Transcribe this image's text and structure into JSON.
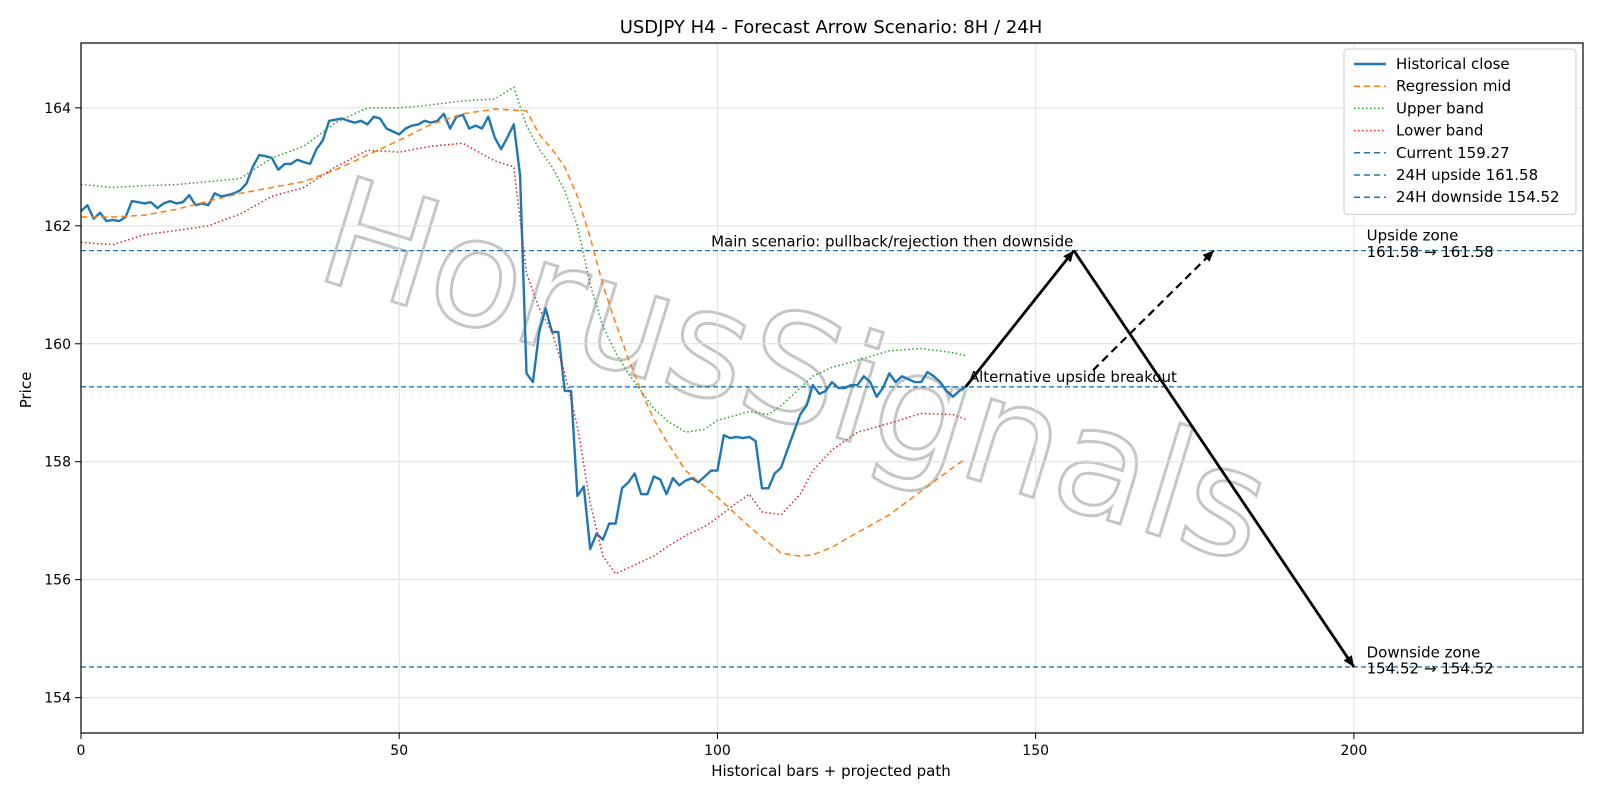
{
  "chart_data": {
    "type": "line",
    "title": "USDJPY H4 - Forecast Arrow Scenario: 8H / 24H",
    "xlabel": "Historical bars + projected path",
    "ylabel": "Price",
    "xlim": [
      0,
      236
    ],
    "ylim": [
      153.4,
      165.1
    ],
    "xticks": [
      0,
      50,
      100,
      150,
      200
    ],
    "yticks": [
      154,
      156,
      158,
      160,
      162,
      164
    ],
    "grid": true,
    "legend_position": "top-right",
    "watermark": "HorusSignals",
    "series": [
      {
        "name": "Historical close",
        "style": "solid",
        "color": "#1f77b4",
        "x": [
          0,
          1,
          2,
          3,
          4,
          5,
          6,
          7,
          8,
          9,
          10,
          11,
          12,
          13,
          14,
          15,
          16,
          17,
          18,
          19,
          20,
          21,
          22,
          23,
          24,
          25,
          26,
          27,
          28,
          29,
          30,
          31,
          32,
          33,
          34,
          35,
          36,
          37,
          38,
          39,
          40,
          41,
          42,
          43,
          44,
          45,
          46,
          47,
          48,
          49,
          50,
          51,
          52,
          53,
          54,
          55,
          56,
          57,
          58,
          59,
          60,
          61,
          62,
          63,
          64,
          65,
          66,
          67,
          68,
          69,
          70,
          71,
          72,
          73,
          74,
          75,
          76,
          77,
          78,
          79,
          80,
          81,
          82,
          83,
          84,
          85,
          86,
          87,
          88,
          89,
          90,
          91,
          92,
          93,
          94,
          95,
          96,
          97,
          98,
          99,
          100,
          101,
          102,
          103,
          104,
          105,
          106,
          107,
          108,
          109,
          110,
          111,
          112,
          113,
          114,
          115,
          116,
          117,
          118,
          119,
          120,
          121,
          122,
          123,
          124,
          125,
          126,
          127,
          128,
          129,
          130,
          131,
          132,
          133,
          134,
          135,
          136,
          137,
          138,
          139
        ],
        "values": [
          162.25,
          162.35,
          162.12,
          162.22,
          162.08,
          162.1,
          162.08,
          162.15,
          162.42,
          162.4,
          162.38,
          162.4,
          162.3,
          162.38,
          162.42,
          162.38,
          162.4,
          162.52,
          162.35,
          162.38,
          162.35,
          162.55,
          162.5,
          162.52,
          162.55,
          162.6,
          162.72,
          163.0,
          163.2,
          163.18,
          163.15,
          162.95,
          163.05,
          163.05,
          163.12,
          163.08,
          163.05,
          163.3,
          163.45,
          163.78,
          163.8,
          163.82,
          163.78,
          163.75,
          163.78,
          163.72,
          163.85,
          163.82,
          163.65,
          163.6,
          163.55,
          163.65,
          163.7,
          163.72,
          163.78,
          163.75,
          163.78,
          163.9,
          163.65,
          163.85,
          163.88,
          163.65,
          163.7,
          163.65,
          163.85,
          163.5,
          163.3,
          163.5,
          163.72,
          162.85,
          159.5,
          159.35,
          160.2,
          160.6,
          160.2,
          160.2,
          159.2,
          159.2,
          157.42,
          157.58,
          156.52,
          156.78,
          156.68,
          156.95,
          156.95,
          157.55,
          157.65,
          157.8,
          157.45,
          157.45,
          157.75,
          157.7,
          157.45,
          157.72,
          157.6,
          157.68,
          157.72,
          157.65,
          157.75,
          157.85,
          157.85,
          158.45,
          158.4,
          158.42,
          158.4,
          158.42,
          158.35,
          157.55,
          157.55,
          157.8,
          157.9,
          158.2,
          158.5,
          158.8,
          158.95,
          159.3,
          159.15,
          159.2,
          159.35,
          159.25,
          159.25,
          159.3,
          159.3,
          159.45,
          159.35,
          159.1,
          159.25,
          159.5,
          159.35,
          159.45,
          159.4,
          159.35,
          159.35,
          159.52,
          159.45,
          159.35,
          159.2,
          159.1,
          159.2,
          159.27
        ]
      },
      {
        "name": "Regression mid",
        "style": "dashed",
        "color": "#ff7f0e",
        "x": [
          0,
          5,
          10,
          15,
          20,
          25,
          30,
          35,
          40,
          45,
          50,
          55,
          60,
          65,
          70,
          72,
          74,
          76,
          78,
          80,
          82,
          84,
          86,
          88,
          90,
          92,
          95,
          100,
          105,
          110,
          113,
          115,
          118,
          122,
          127,
          132,
          137,
          139
        ],
        "values": [
          162.15,
          162.15,
          162.18,
          162.28,
          162.42,
          162.55,
          162.65,
          162.75,
          162.95,
          163.2,
          163.45,
          163.72,
          163.9,
          163.98,
          163.95,
          163.55,
          163.3,
          163.0,
          162.5,
          161.8,
          161.0,
          160.35,
          159.75,
          159.2,
          158.72,
          158.35,
          157.85,
          157.4,
          156.9,
          156.45,
          156.4,
          156.42,
          156.55,
          156.8,
          157.1,
          157.5,
          157.9,
          158.05
        ]
      },
      {
        "name": "Upper band",
        "style": "dotted",
        "color": "#2ca02c",
        "x": [
          0,
          5,
          10,
          15,
          20,
          25,
          30,
          35,
          40,
          45,
          50,
          55,
          60,
          65,
          68,
          70,
          72,
          74,
          76,
          78,
          80,
          82,
          84,
          86,
          88,
          90,
          92,
          95,
          98,
          100,
          105,
          108,
          110,
          113,
          115,
          118,
          122,
          127,
          132,
          137,
          139
        ],
        "values": [
          162.7,
          162.65,
          162.68,
          162.7,
          162.75,
          162.8,
          163.15,
          163.35,
          163.75,
          164.0,
          164.0,
          164.05,
          164.12,
          164.15,
          164.35,
          163.7,
          163.3,
          163.0,
          162.6,
          162.0,
          161.0,
          160.3,
          159.85,
          159.5,
          159.2,
          158.9,
          158.7,
          158.5,
          158.55,
          158.7,
          158.85,
          158.8,
          158.95,
          159.25,
          159.45,
          159.6,
          159.72,
          159.88,
          159.92,
          159.85,
          159.8
        ]
      },
      {
        "name": "Lower band",
        "style": "dotted",
        "color": "#d62728",
        "x": [
          0,
          5,
          10,
          15,
          20,
          25,
          30,
          35,
          40,
          45,
          50,
          55,
          60,
          65,
          68,
          70,
          72,
          74,
          76,
          78,
          80,
          82,
          84,
          86,
          88,
          90,
          92,
          95,
          98,
          100,
          103,
          105,
          107,
          110,
          113,
          115,
          118,
          122,
          127,
          132,
          137,
          139
        ],
        "values": [
          161.72,
          161.68,
          161.85,
          161.92,
          162.0,
          162.2,
          162.5,
          162.65,
          163.0,
          163.28,
          163.25,
          163.35,
          163.4,
          163.1,
          163.0,
          161.2,
          160.6,
          160.2,
          159.5,
          158.6,
          157.3,
          156.4,
          156.1,
          156.2,
          156.3,
          156.4,
          156.55,
          156.75,
          156.9,
          157.05,
          157.3,
          157.45,
          157.15,
          157.1,
          157.45,
          157.85,
          158.2,
          158.5,
          158.65,
          158.82,
          158.8,
          158.72
        ]
      }
    ],
    "reference_lines": [
      {
        "name": "Current 159.27",
        "value": 159.27,
        "style": "dashed",
        "color": "#1f77b4"
      },
      {
        "name": "24H upside 161.58",
        "value": 161.58,
        "style": "dashed",
        "color": "#1f77b4"
      },
      {
        "name": "24H downside 154.52",
        "value": 154.52,
        "style": "dashed",
        "color": "#1f77b4"
      }
    ],
    "arrows": [
      {
        "from": [
          139,
          159.27
        ],
        "to": [
          156,
          161.58
        ],
        "style": "solid"
      },
      {
        "from": [
          156,
          161.58
        ],
        "to": [
          200,
          154.52
        ],
        "style": "solid"
      },
      {
        "from": [
          159,
          159.55
        ],
        "to": [
          178,
          161.58
        ],
        "style": "dashed"
      }
    ],
    "annotations": [
      {
        "text": "Main scenario: pullback/rejection then downside",
        "x": 99,
        "y": 161.65
      },
      {
        "text": "Alternative upside breakout",
        "x": 139.5,
        "y": 159.35
      },
      {
        "text": "Upside zone",
        "x": 202,
        "y": 161.75
      },
      {
        "text": "161.58 → 161.58",
        "x": 202,
        "y": 161.47
      },
      {
        "text": "Downside zone",
        "x": 202,
        "y": 154.68
      },
      {
        "text": "154.52 → 154.52",
        "x": 202,
        "y": 154.41
      }
    ]
  }
}
